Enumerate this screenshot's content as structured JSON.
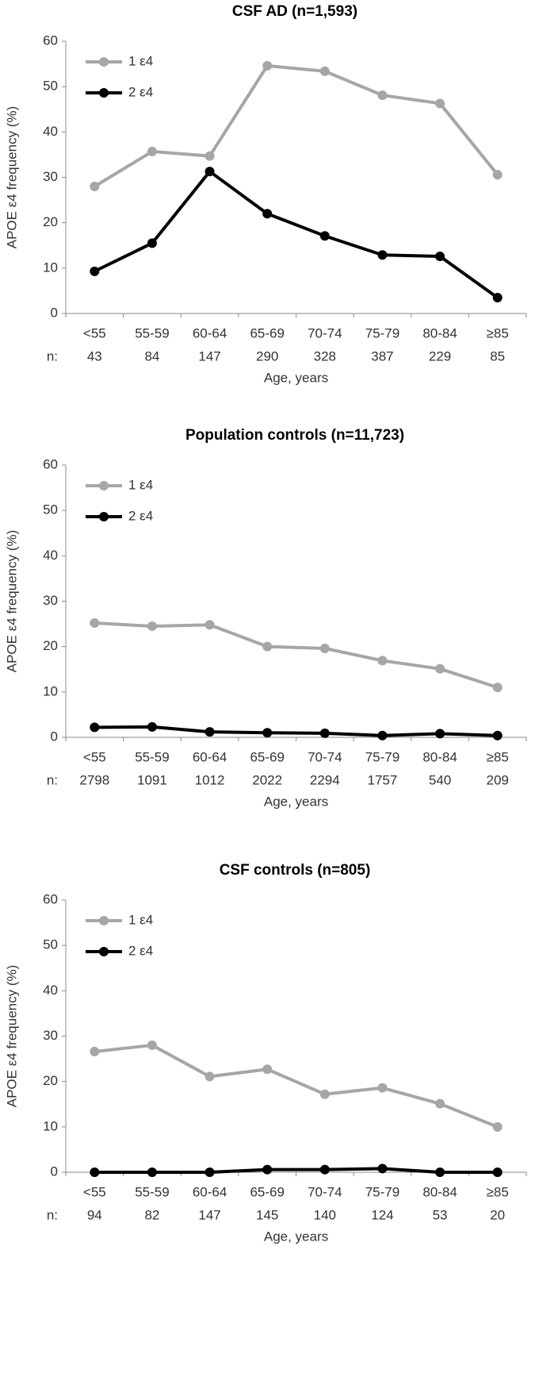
{
  "chart_data": [
    {
      "type": "line",
      "title": "CSF AD (n=1,593)",
      "categories": [
        "<55",
        "55-59",
        "60-64",
        "65-69",
        "70-74",
        "75-79",
        "80-84",
        "≥85"
      ],
      "n_label": "n:",
      "n_values": [
        43,
        84,
        147,
        290,
        328,
        387,
        229,
        85
      ],
      "x_label": "Age, years",
      "y_label": "APOE ε4 frequency (%)",
      "ylim": [
        0,
        60
      ],
      "yticks": [
        0,
        10,
        20,
        30,
        40,
        50,
        60
      ],
      "grid": false,
      "legend": "top-left",
      "series": [
        {
          "name": "1 ε4",
          "color": "#a6a6a6",
          "values": [
            28.0,
            35.7,
            34.7,
            54.6,
            53.4,
            48.1,
            46.3,
            30.6
          ]
        },
        {
          "name": "2 ε4",
          "color": "#000000",
          "values": [
            9.3,
            15.5,
            31.3,
            22.0,
            17.1,
            12.9,
            12.6,
            3.5
          ]
        }
      ]
    },
    {
      "type": "line",
      "title": "Population controls (n=11,723)",
      "categories": [
        "<55",
        "55-59",
        "60-64",
        "65-69",
        "70-74",
        "75-79",
        "80-84",
        "≥85"
      ],
      "n_label": "n:",
      "n_values": [
        2798,
        1091,
        1012,
        2022,
        2294,
        1757,
        540,
        209
      ],
      "x_label": "Age, years",
      "y_label": "APOE ε4 frequency (%)",
      "ylim": [
        0,
        60
      ],
      "yticks": [
        0,
        10,
        20,
        30,
        40,
        50,
        60
      ],
      "grid": false,
      "legend": "top-left",
      "series": [
        {
          "name": "1 ε4",
          "color": "#a6a6a6",
          "values": [
            25.2,
            24.5,
            24.8,
            20.0,
            19.6,
            16.9,
            15.1,
            11.0
          ]
        },
        {
          "name": "2 ε4",
          "color": "#000000",
          "values": [
            2.2,
            2.3,
            1.2,
            1.0,
            0.9,
            0.4,
            0.8,
            0.4
          ]
        }
      ]
    },
    {
      "type": "line",
      "title": "CSF controls (n=805)",
      "categories": [
        "<55",
        "55-59",
        "60-64",
        "65-69",
        "70-74",
        "75-79",
        "80-84",
        "≥85"
      ],
      "n_label": "n:",
      "n_values": [
        94,
        82,
        147,
        145,
        140,
        124,
        53,
        20
      ],
      "x_label": "Age, years",
      "y_label": "APOE ε4 frequency (%)",
      "ylim": [
        0,
        60
      ],
      "yticks": [
        0,
        10,
        20,
        30,
        40,
        50,
        60
      ],
      "grid": false,
      "legend": "top-left",
      "series": [
        {
          "name": "1 ε4",
          "color": "#a6a6a6",
          "values": [
            26.6,
            28.0,
            21.1,
            22.7,
            17.2,
            18.6,
            15.1,
            10.0
          ]
        },
        {
          "name": "2 ε4",
          "color": "#000000",
          "values": [
            0,
            0,
            0,
            0.6,
            0.6,
            0.8,
            0,
            0
          ]
        }
      ]
    }
  ]
}
